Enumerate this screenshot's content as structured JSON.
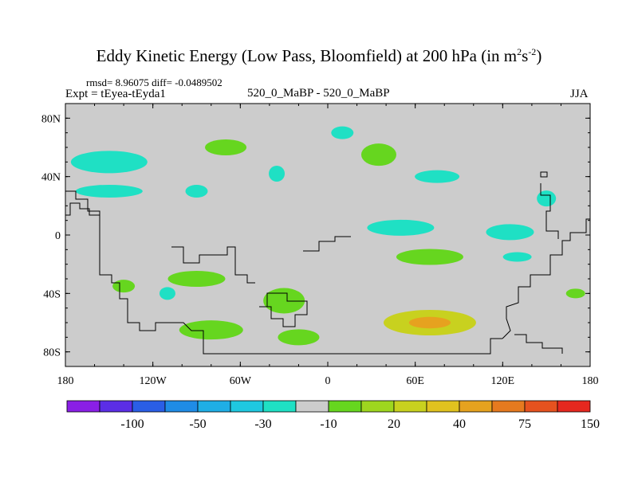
{
  "header": {
    "title_main": "Eddy Kinetic Energy (Low Pass, Bloomfield) at 200 hPa (in m",
    "title_sup1": "2",
    "title_s": "s",
    "title_sup2": "-2",
    "title_close": ")",
    "stats": "rmsd= 8.96075 diff= -0.0489502",
    "experiment": "Expt = tEyea-tEyda1",
    "runs": "520_0_MaBP - 520_0_MaBP",
    "season": "JJA"
  },
  "chart_data": {
    "type": "heatmap",
    "title": "Eddy Kinetic Energy (Low Pass, Bloomfield) at 200 hPa (in m^2 s^-2)",
    "x_axis": {
      "range": [
        -180,
        180
      ],
      "ticks": [
        -180,
        -120,
        -60,
        0,
        60,
        120,
        180
      ],
      "tick_labels": [
        "180",
        "120W",
        "60W",
        "0",
        "60E",
        "120E",
        "180"
      ]
    },
    "y_axis": {
      "range": [
        -90,
        90
      ],
      "ticks": [
        80,
        40,
        0,
        -40,
        -80
      ],
      "tick_labels": [
        "80N",
        "40N",
        "0",
        "40S",
        "80S"
      ]
    },
    "colorbar": {
      "colors": [
        "#8a1fe6",
        "#5b2ee6",
        "#2a5ee6",
        "#1f8ce6",
        "#1faee6",
        "#1fc8e0",
        "#1fe0c4",
        "#cccccc",
        "#66d61f",
        "#9ed61f",
        "#c8d11f",
        "#e0c21f",
        "#e6a21f",
        "#e67a1f",
        "#e6521f",
        "#e6281f"
      ],
      "tick_labels": [
        "-100",
        "-50",
        "-30",
        "-10",
        "20",
        "40",
        "75",
        "150"
      ]
    },
    "anomalies": [
      {
        "lon": -150,
        "lat": 50,
        "value": -15
      },
      {
        "lon": -150,
        "lat": 30,
        "value": -12
      },
      {
        "lon": -70,
        "lat": 60,
        "value": 12
      },
      {
        "lon": -90,
        "lat": 30,
        "value": -12
      },
      {
        "lon": -35,
        "lat": 42,
        "value": -12
      },
      {
        "lon": 10,
        "lat": 70,
        "value": -12
      },
      {
        "lon": 35,
        "lat": 55,
        "value": 15
      },
      {
        "lon": 75,
        "lat": 40,
        "value": -15
      },
      {
        "lon": 150,
        "lat": 25,
        "value": -15
      },
      {
        "lon": 50,
        "lat": 5,
        "value": -15
      },
      {
        "lon": 125,
        "lat": 2,
        "value": -15
      },
      {
        "lon": 130,
        "lat": -15,
        "value": -12
      },
      {
        "lon": 70,
        "lat": -15,
        "value": 15
      },
      {
        "lon": -90,
        "lat": -30,
        "value": 15
      },
      {
        "lon": -140,
        "lat": -35,
        "value": 15
      },
      {
        "lon": -110,
        "lat": -40,
        "value": -12
      },
      {
        "lon": -30,
        "lat": -45,
        "value": 15
      },
      {
        "lon": 70,
        "lat": -60,
        "value": 40
      },
      {
        "lon": 170,
        "lat": -40,
        "value": 15
      },
      {
        "lon": -80,
        "lat": -65,
        "value": 15
      },
      {
        "lon": -20,
        "lat": -70,
        "value": 15
      }
    ]
  }
}
